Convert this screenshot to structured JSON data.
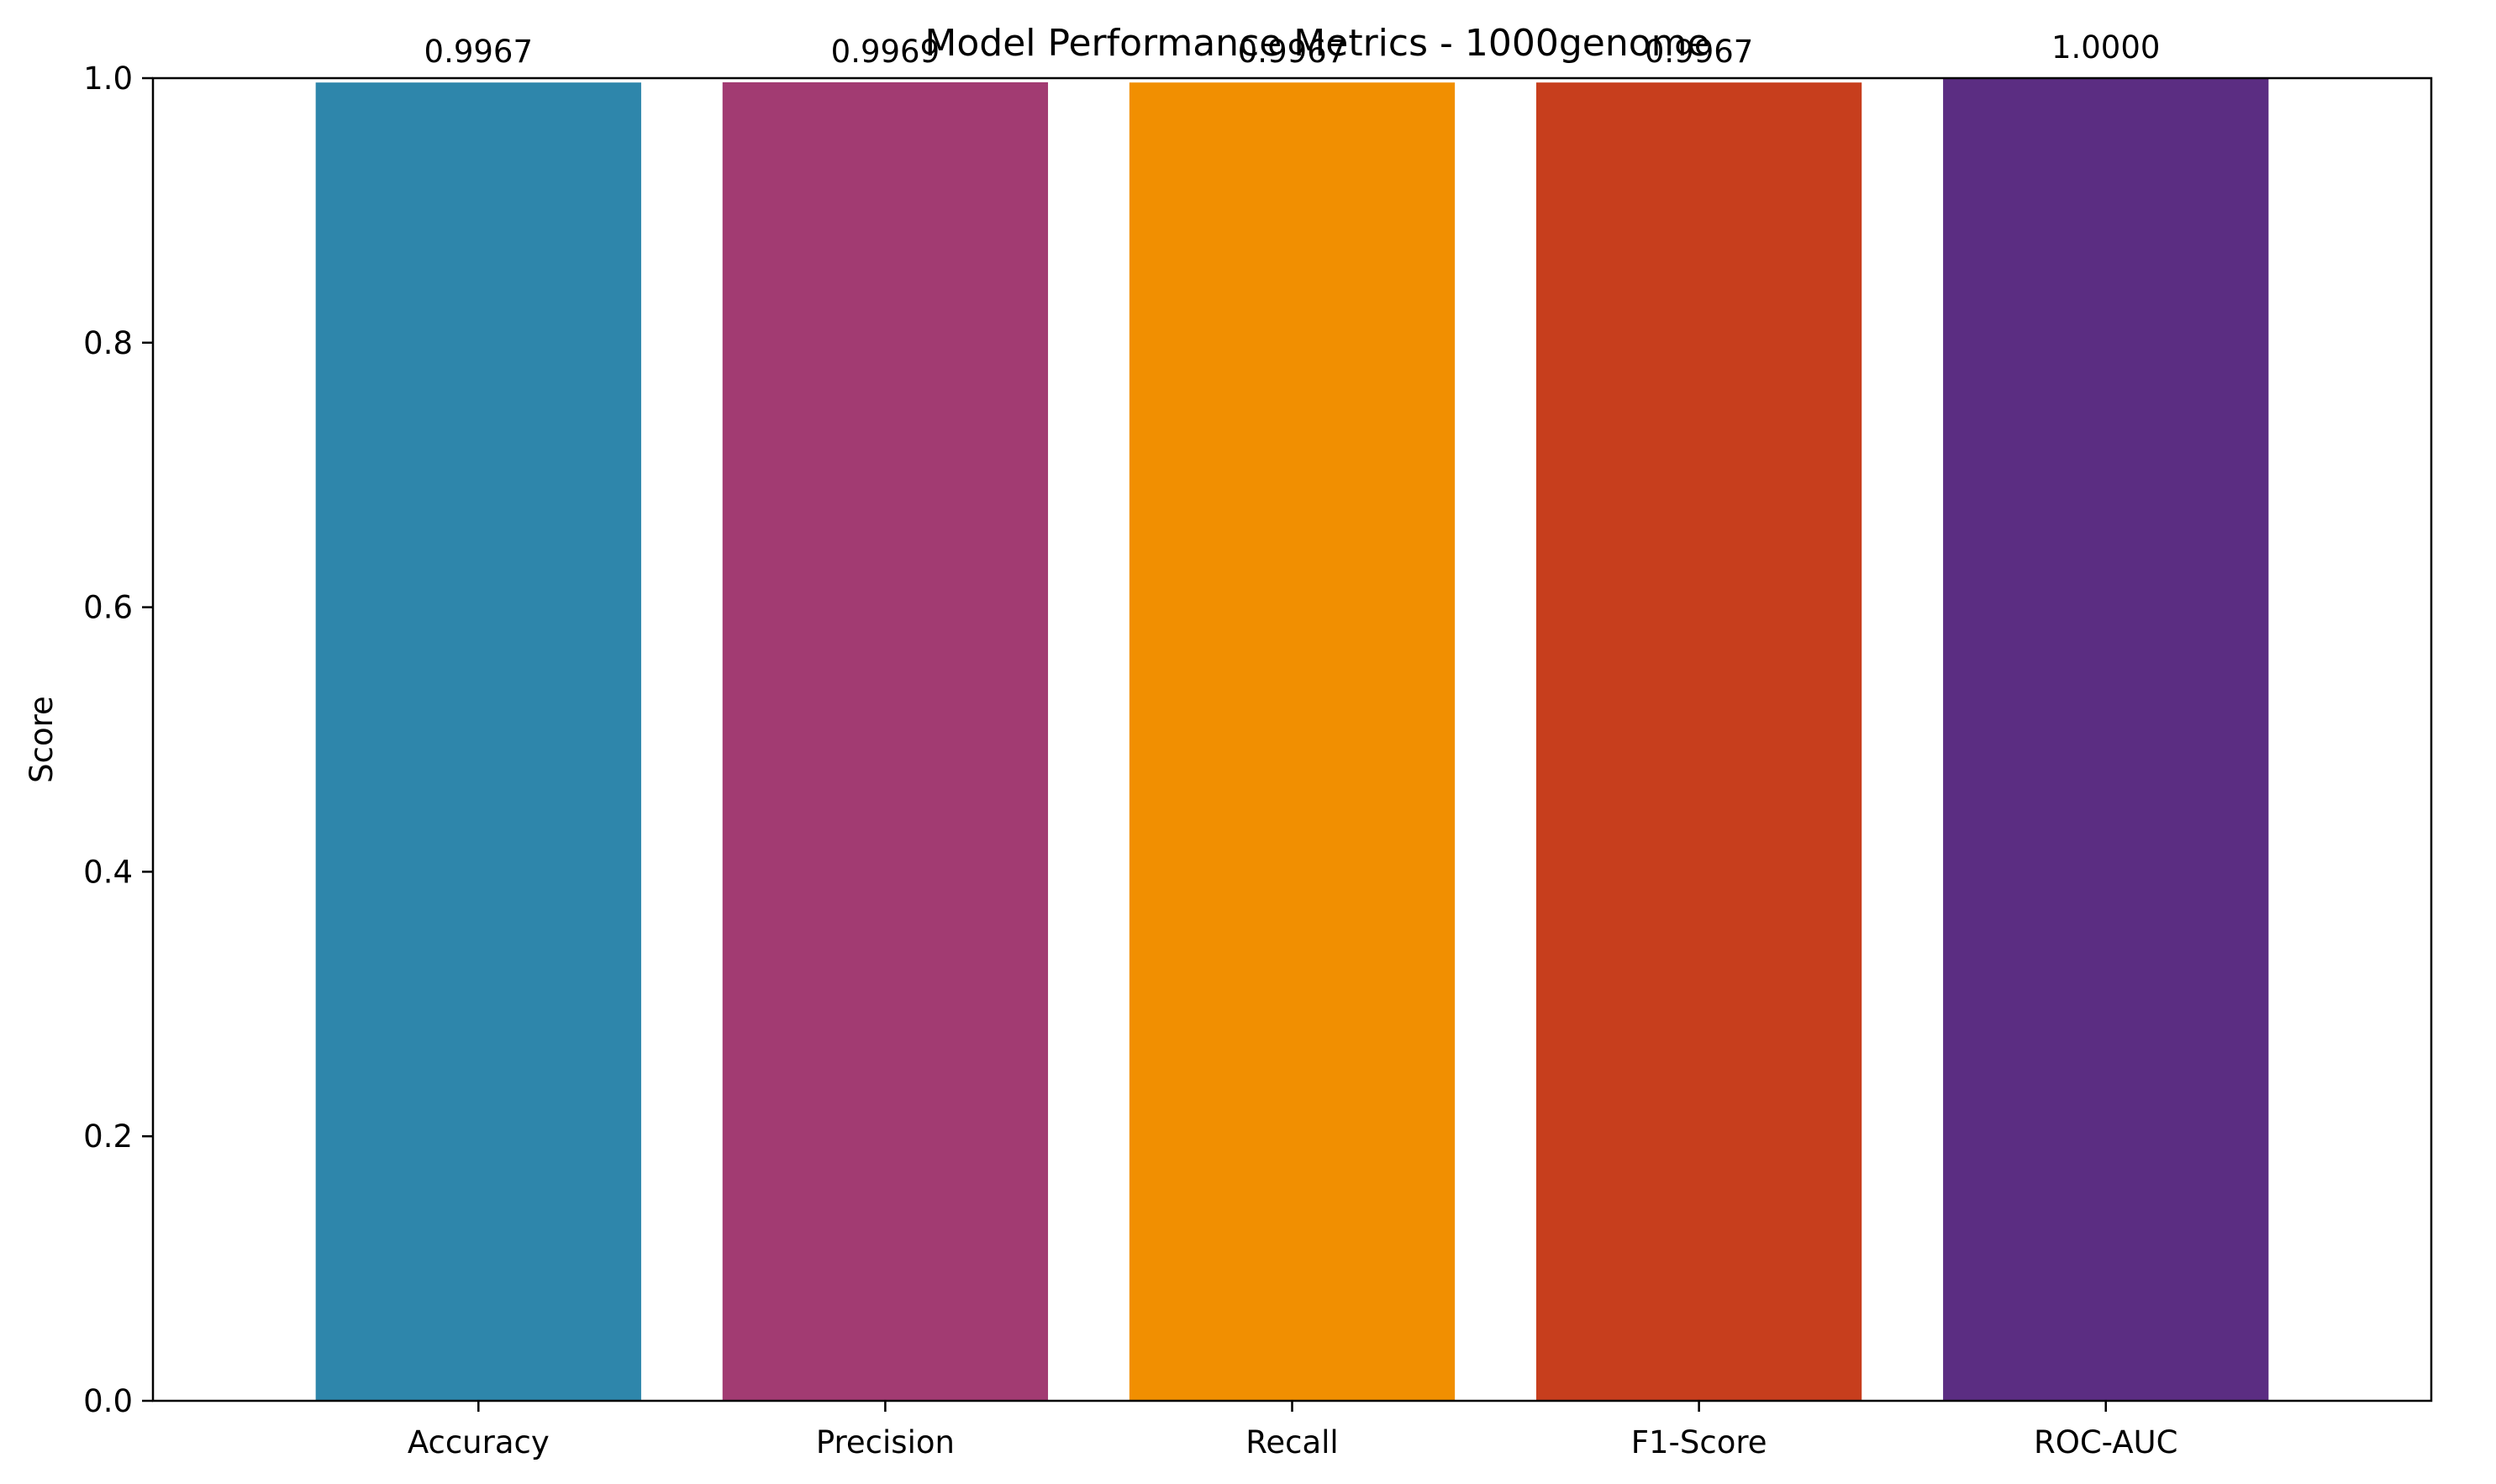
{
  "chart_data": {
    "type": "bar",
    "title": "Model Performance Metrics - 1000genome",
    "xlabel": "",
    "ylabel": "Score",
    "ylim": [
      0,
      1.0
    ],
    "yticks": [
      "0.0",
      "0.2",
      "0.4",
      "0.6",
      "0.8",
      "1.0"
    ],
    "categories": [
      "Accuracy",
      "Precision",
      "Recall",
      "F1-Score",
      "ROC-AUC"
    ],
    "values": [
      0.9967,
      0.9969,
      0.9967,
      0.9967,
      1.0
    ],
    "value_labels": [
      "0.9967",
      "0.9969",
      "0.9967",
      "0.9967",
      "1.0000"
    ],
    "colors": [
      "#2E86AB",
      "#A23B72",
      "#F18F01",
      "#C73E1D",
      "#5B2D82"
    ],
    "grid": false,
    "legend": "none"
  }
}
